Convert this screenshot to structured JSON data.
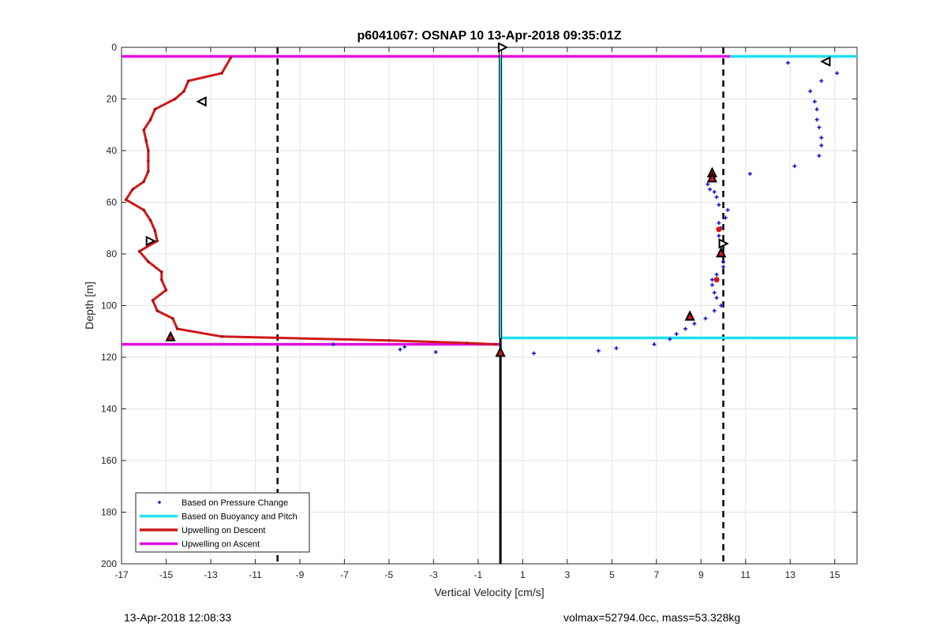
{
  "chart_data": {
    "type": "scatter",
    "title": "p6041067: OSNAP 10 13-Apr-2018 09:35:01Z",
    "xlabel": "Vertical Velocity [cm/s]",
    "ylabel": "Depth [m]",
    "xlim": [
      -17,
      16
    ],
    "ylim": [
      0,
      200
    ],
    "y_reversed": true,
    "grid": true,
    "xticks": [
      -17,
      -15,
      -13,
      -11,
      -9,
      -7,
      -5,
      -3,
      -1,
      1,
      3,
      5,
      7,
      9,
      11,
      13,
      15
    ],
    "yticks": [
      0,
      20,
      40,
      60,
      80,
      100,
      120,
      140,
      160,
      180,
      200
    ],
    "legend_position": "bottom-left",
    "colors": {
      "pressure": "#1010d0",
      "buoyancy": "#22e0f0",
      "descent": "#d01818",
      "ascent": "#e010e0",
      "reference": "#000000"
    },
    "series": [
      {
        "name": "Based on Pressure Change",
        "style": "dots",
        "points": [
          [
            -7.5,
            115
          ],
          [
            -4.5,
            117
          ],
          [
            -4.3,
            116
          ],
          [
            -2.9,
            118
          ],
          [
            1.5,
            118.5
          ],
          [
            4.4,
            117.5
          ],
          [
            5.2,
            116.5
          ],
          [
            6.9,
            115
          ],
          [
            7.6,
            113
          ],
          [
            7.9,
            111
          ],
          [
            8.3,
            109
          ],
          [
            8.7,
            107
          ],
          [
            9.2,
            105
          ],
          [
            9.6,
            102
          ],
          [
            9.9,
            100
          ],
          [
            9.7,
            97
          ],
          [
            9.6,
            95
          ],
          [
            9.5,
            92
          ],
          [
            9.5,
            90
          ],
          [
            9.7,
            88
          ],
          [
            10.0,
            85
          ],
          [
            10.0,
            83
          ],
          [
            9.9,
            80
          ],
          [
            9.9,
            77
          ],
          [
            9.8,
            73
          ],
          [
            9.9,
            70
          ],
          [
            9.8,
            68
          ],
          [
            10.1,
            66
          ],
          [
            10.2,
            63
          ],
          [
            9.8,
            61
          ],
          [
            9.7,
            58
          ],
          [
            9.6,
            56
          ],
          [
            9.4,
            55
          ],
          [
            9.3,
            53
          ],
          [
            9.5,
            51
          ],
          [
            11.2,
            49
          ],
          [
            13.2,
            46
          ],
          [
            14.3,
            42
          ],
          [
            14.4,
            38
          ],
          [
            14.4,
            35
          ],
          [
            14.3,
            31
          ],
          [
            14.2,
            28
          ],
          [
            14.2,
            24
          ],
          [
            14.1,
            21
          ],
          [
            13.9,
            17
          ],
          [
            14.4,
            13
          ],
          [
            15.1,
            10
          ],
          [
            12.9,
            6
          ],
          [
            14.6,
            6
          ]
        ]
      },
      {
        "name": "Based on Buoyancy and Pitch",
        "style": "line",
        "points": [
          [
            10.3,
            3.5
          ],
          [
            16,
            3.5
          ],
          [
            0,
            3.5
          ],
          [
            0,
            112.5
          ],
          [
            16,
            112.5
          ]
        ]
      },
      {
        "name": "Upwelling on Descent",
        "style": "line",
        "points": [
          [
            -12.1,
            4
          ],
          [
            -12.5,
            10
          ],
          [
            -14,
            13
          ],
          [
            -14.2,
            17
          ],
          [
            -14.6,
            20
          ],
          [
            -15.5,
            24
          ],
          [
            -15.7,
            28
          ],
          [
            -16.0,
            32
          ],
          [
            -15.9,
            36
          ],
          [
            -15.8,
            40
          ],
          [
            -15.8,
            44
          ],
          [
            -15.8,
            48
          ],
          [
            -16.0,
            52
          ],
          [
            -16.5,
            55
          ],
          [
            -16.8,
            59
          ],
          [
            -16.0,
            63
          ],
          [
            -15.7,
            67
          ],
          [
            -15.5,
            71
          ],
          [
            -15.4,
            75
          ],
          [
            -16.2,
            79
          ],
          [
            -15.8,
            83
          ],
          [
            -15.2,
            87
          ],
          [
            -15.2,
            90
          ],
          [
            -15.0,
            94
          ],
          [
            -15.6,
            98
          ],
          [
            -15.4,
            102
          ],
          [
            -14.7,
            105
          ],
          [
            -14.5,
            109
          ],
          [
            -12.5,
            112
          ],
          [
            -5.0,
            113.5
          ],
          [
            -1.5,
            114.5
          ],
          [
            -0.2,
            115
          ]
        ]
      },
      {
        "name": "Upwelling on Ascent",
        "style": "line",
        "points": [
          [
            -17,
            3.5
          ],
          [
            10.3,
            3.5
          ],
          [
            -17,
            115
          ],
          [
            0,
            115
          ]
        ]
      }
    ],
    "reference_lines": {
      "vertical_dashed": [
        -10,
        10
      ],
      "vertical_solid": 0
    },
    "markers": [
      {
        "shape": "triangle-right",
        "x": 0.1,
        "y": 0
      },
      {
        "shape": "triangle-left",
        "x": 14.6,
        "y": 5.5
      },
      {
        "shape": "triangle-left",
        "x": -13.4,
        "y": 21
      },
      {
        "shape": "triangle-right",
        "x": -15.7,
        "y": 75
      },
      {
        "shape": "triangle-up",
        "x": -14.8,
        "y": 112
      },
      {
        "shape": "triangle-up",
        "x": 9.5,
        "y": 48.5
      },
      {
        "shape": "triangle-up",
        "x": 9.5,
        "y": 50.5
      },
      {
        "shape": "triangle-up",
        "x": 9.9,
        "y": 79.5
      },
      {
        "shape": "triangle-up",
        "x": 8.5,
        "y": 104
      },
      {
        "shape": "triangle-up",
        "x": 0,
        "y": 118
      },
      {
        "shape": "triangle-right",
        "x": 10.0,
        "y": 76
      },
      {
        "shape": "red-dot",
        "x": 9.8,
        "y": 70.5
      },
      {
        "shape": "red-dot",
        "x": 9.7,
        "y": 90
      }
    ]
  },
  "footer": {
    "timestamp": "13-Apr-2018 12:08:33",
    "info": "volmax=52794.0cc, mass=53.328kg"
  }
}
